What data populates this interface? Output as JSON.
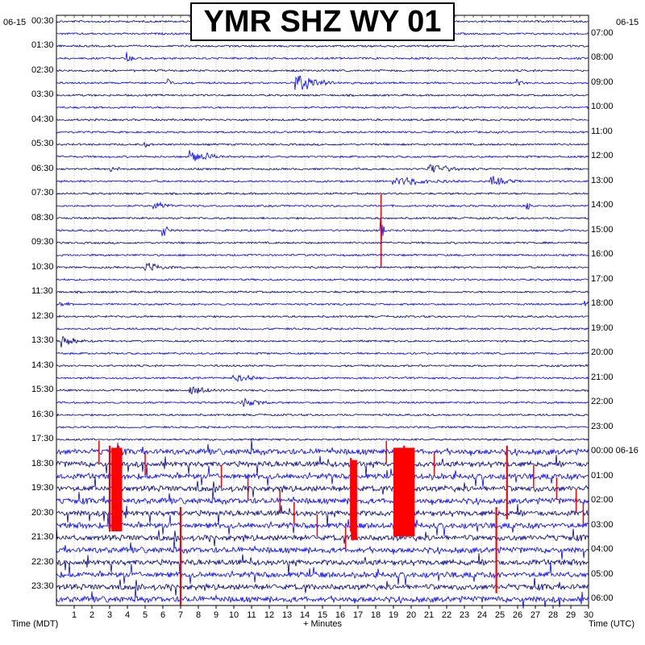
{
  "title": "YMR SHZ WY 01",
  "date_left": "06-15",
  "date_right": "06-15",
  "xlabel_left": "Time (MDT)",
  "xlabel_center": "+ Minutes",
  "xlabel_right": "Time (UTC)",
  "colors": {
    "trace_a": "#000080",
    "trace_b": "#0000ff",
    "clip": "#ff0000",
    "grid": "#a0a0a0"
  },
  "chart_data": {
    "type": "line",
    "description_units": "seismogram helicorder, 30 minutes per line",
    "xlim": [
      0,
      30
    ],
    "x_ticks": [
      "1",
      "2",
      "3",
      "4",
      "5",
      "6",
      "7",
      "8",
      "9",
      "10",
      "11",
      "12",
      "13",
      "14",
      "15",
      "16",
      "17",
      "18",
      "19",
      "20",
      "21",
      "22",
      "23",
      "24",
      "25",
      "26",
      "27",
      "28",
      "29",
      "30"
    ],
    "left_time_labels": [
      "00:30",
      "01:30",
      "02:30",
      "03:30",
      "04:30",
      "05:30",
      "06:30",
      "07:30",
      "08:30",
      "09:30",
      "10:30",
      "11:30",
      "12:30",
      "13:30",
      "14:30",
      "15:30",
      "16:30",
      "17:30",
      "18:30",
      "19:30",
      "20:30",
      "21:30",
      "22:30",
      "23:30"
    ],
    "right_time_labels": [
      "07:00",
      "08:00",
      "09:00",
      "10:00",
      "11:00",
      "12:00",
      "13:00",
      "14:00",
      "15:00",
      "16:00",
      "17:00",
      "18:00",
      "19:00",
      "20:00",
      "21:00",
      "22:00",
      "23:00",
      "00:00 06-16",
      "01:00",
      "02:00",
      "03:00",
      "04:00",
      "05:00",
      "06:00"
    ],
    "events": [
      {
        "line": 3,
        "minute": 4.0,
        "amp": 10,
        "dur": 0.5
      },
      {
        "line": 5,
        "minute": 6.3,
        "amp": 16,
        "dur": 0.4
      },
      {
        "line": 5,
        "minute": 13.5,
        "amp": 14,
        "dur": 3.0
      },
      {
        "line": 5,
        "minute": 26.0,
        "amp": 8,
        "dur": 0.5
      },
      {
        "line": 10,
        "minute": 5.0,
        "amp": 6,
        "dur": 0.4
      },
      {
        "line": 11,
        "minute": 7.5,
        "amp": 12,
        "dur": 2.5
      },
      {
        "line": 12,
        "minute": 3.0,
        "amp": 5,
        "dur": 1.5
      },
      {
        "line": 12,
        "minute": 21.0,
        "amp": 9,
        "dur": 3.0
      },
      {
        "line": 13,
        "minute": 19.0,
        "amp": 8,
        "dur": 5.0
      },
      {
        "line": 13,
        "minute": 24.5,
        "amp": 9,
        "dur": 2.0
      },
      {
        "line": 15,
        "minute": 5.5,
        "amp": 7,
        "dur": 2.0
      },
      {
        "line": 15,
        "minute": 26.5,
        "amp": 7,
        "dur": 0.5
      },
      {
        "line": 17,
        "minute": 6.0,
        "amp": 11,
        "dur": 0.6
      },
      {
        "line": 17,
        "minute": 18.3,
        "amp": 30,
        "dur": 0.2,
        "clip": true
      },
      {
        "line": 20,
        "minute": 5.0,
        "amp": 9,
        "dur": 2.0
      },
      {
        "line": 23,
        "minute": 0.2,
        "amp": 7,
        "dur": 1.0
      },
      {
        "line": 23,
        "minute": 29.8,
        "amp": 6,
        "dur": 0.5
      },
      {
        "line": 26,
        "minute": 0.3,
        "amp": 12,
        "dur": 1.5
      },
      {
        "line": 29,
        "minute": 10.0,
        "amp": 6,
        "dur": 3.0
      },
      {
        "line": 30,
        "minute": 7.5,
        "amp": 10,
        "dur": 2.0
      },
      {
        "line": 31,
        "minute": 10.5,
        "amp": 9,
        "dur": 2.0
      }
    ],
    "busy_region": {
      "from_line": 35,
      "to_line": 47,
      "amp": 14
    },
    "clip_bars": [
      {
        "minute": 3.0,
        "from_line": 35,
        "to_line": 41
      },
      {
        "minute": 3.5,
        "from_line": 35,
        "to_line": 40
      },
      {
        "minute": 16.6,
        "from_line": 36,
        "to_line": 41
      },
      {
        "minute": 19.6,
        "from_line": 35,
        "to_line": 41
      },
      {
        "minute": 7.0,
        "from_line": 40,
        "to_line": 47
      },
      {
        "minute": 24.8,
        "from_line": 40,
        "to_line": 46
      },
      {
        "minute": 25.4,
        "from_line": 35,
        "to_line": 40
      }
    ]
  }
}
